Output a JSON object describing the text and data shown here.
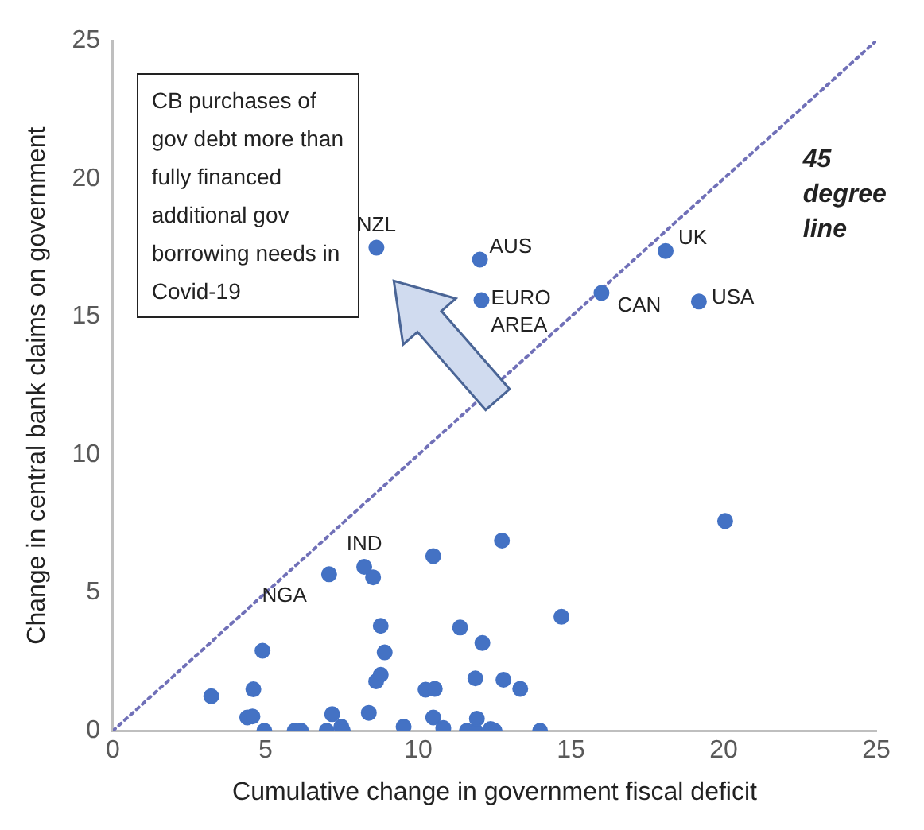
{
  "chart_data": {
    "type": "scatter",
    "xlabel": "Cumulative change in government fiscal deficit",
    "ylabel": "Change in central bank claims on government",
    "xlim": [
      0,
      25
    ],
    "ylim": [
      0,
      25
    ],
    "xticks": [
      0,
      5,
      10,
      15,
      20,
      25
    ],
    "yticks": [
      0,
      5,
      10,
      15,
      20,
      25
    ],
    "grid": false,
    "legend": false,
    "marker": "circle",
    "series": [
      {
        "type": "scatter",
        "color": "#4472c4",
        "x": [
          3.22,
          4.6,
          4.4,
          4.57,
          4.9,
          4.96,
          5.95,
          6.16,
          7.0,
          7.08,
          7.18,
          7.48,
          7.53,
          8.23,
          8.52,
          8.38,
          8.77,
          8.9,
          8.62,
          8.77,
          9.52,
          10.49,
          10.24,
          10.54,
          10.49,
          10.82,
          11.37,
          11.59,
          11.87,
          11.87,
          12.1,
          11.92,
          12.37,
          12.5,
          12.74,
          12.79,
          13.34,
          13.99,
          14.69,
          20.05,
          8.63,
          12.02,
          12.07,
          16.0,
          18.1,
          19.19
        ],
        "values": [
          1.25,
          1.5,
          0.48,
          0.52,
          2.9,
          0,
          0,
          0,
          0,
          5.67,
          0.6,
          0.15,
          0,
          5.94,
          5.56,
          0.65,
          3.8,
          2.84,
          1.79,
          2.03,
          0.15,
          6.33,
          1.49,
          1.52,
          0.48,
          0.1,
          3.74,
          0,
          0,
          1.9,
          3.18,
          0.44,
          0.06,
          0,
          6.89,
          1.85,
          1.52,
          0,
          4.13,
          7.6,
          17.5,
          17.07,
          15.6,
          15.86,
          17.38,
          15.55
        ]
      },
      {
        "type": "line",
        "color": "#7070b8",
        "line_style": "dotted",
        "marker": "none",
        "x": [
          0,
          25
        ],
        "values": [
          0,
          25
        ]
      }
    ],
    "annotations": [
      {
        "text": "NZL",
        "x": 8.63,
        "y": 17.5
      },
      {
        "text": "AUS",
        "x": 12.02,
        "y": 17.07
      },
      {
        "text": "EURO AREA",
        "x": 12.07,
        "y": 15.6
      },
      {
        "text": "CAN",
        "x": 16.0,
        "y": 15.86
      },
      {
        "text": "UK",
        "x": 18.1,
        "y": 17.38
      },
      {
        "text": "USA",
        "x": 19.19,
        "y": 15.55
      },
      {
        "text": "IND",
        "x": 8.23,
        "y": 5.94
      },
      {
        "text": "NGA",
        "x": 7.08,
        "y": 5.67
      },
      "45 degree line",
      "CB purchases of gov debt more than fully financed additional gov borrowing needs in Covid-19"
    ]
  }
}
